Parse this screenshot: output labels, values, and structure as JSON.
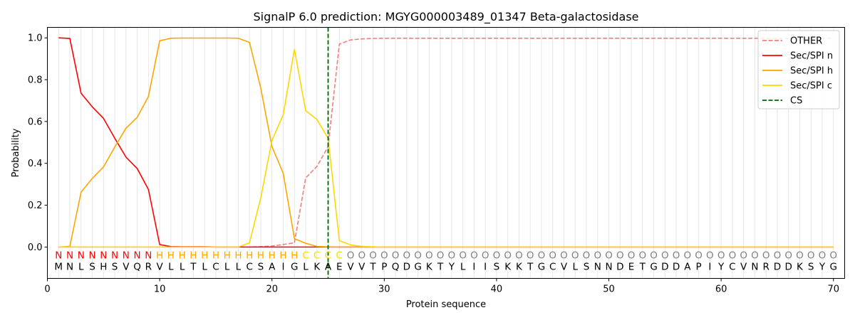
{
  "chart_data": {
    "type": "line",
    "title": "SignalP 6.0 prediction: MGYG000003489_01347 Beta-galactosidase",
    "xlabel": "Protein sequence",
    "ylabel": "Probability",
    "xlim": [
      0,
      71
    ],
    "ylim": [
      -0.15,
      1.05
    ],
    "x_ticks": [
      0,
      10,
      20,
      30,
      40,
      50,
      60,
      70
    ],
    "y_ticks": [
      0.0,
      0.2,
      0.4,
      0.6,
      0.8,
      1.0
    ],
    "x_tick_labels": [
      "0",
      "10",
      "20",
      "30",
      "40",
      "50",
      "60",
      "70"
    ],
    "y_tick_labels": [
      "0.0",
      "0.2",
      "0.4",
      "0.6",
      "0.8",
      "1.0"
    ],
    "grid": "vertical lines at each residue",
    "legend_position": "top-right",
    "sequence": "MNLSHSVQRVLLTLCLLCSAIGLKAEVVTPQDGKTYLIISKKTGCVLSNNDETGDDAPIYCVNRDDKSYG",
    "labels": "NNNNNNNNNHHHHHHHHHHHHHCCCCOOOOOOOOOOOOOOOOOOOOOOOOOOOOOOOOOOOOOOOOOOOOO",
    "label_colors": {
      "N": "#ff0000",
      "H": "#ffa500",
      "C": "#ffd700",
      "O": "#808080"
    },
    "series": [
      {
        "name": "OTHER",
        "color": "#f08080",
        "dash": "dashed",
        "values": [
          0,
          0,
          0,
          0,
          0,
          0,
          0,
          0,
          0,
          0,
          0,
          0,
          0,
          0,
          0,
          0,
          0,
          0,
          0.002,
          0.005,
          0.012,
          0.02,
          0.33,
          0.385,
          0.48,
          0.97,
          0.99,
          0.995,
          0.997,
          0.998,
          0.998,
          0.998,
          0.998,
          0.998,
          0.998,
          0.998,
          0.998,
          0.998,
          0.998,
          0.998,
          0.998,
          0.998,
          0.998,
          0.998,
          0.998,
          0.998,
          0.998,
          0.998,
          0.998,
          0.998,
          0.998,
          0.998,
          0.998,
          0.998,
          0.998,
          0.998,
          0.998,
          0.998,
          0.998,
          0.998,
          0.998,
          0.998,
          0.998,
          0.998,
          0.998,
          0.998,
          0.998,
          0.998,
          0.998,
          0.998
        ]
      },
      {
        "name": "Sec/SPI n",
        "color": "#ff0000",
        "dash": "solid",
        "values": [
          1.0,
          0.997,
          0.735,
          0.67,
          0.615,
          0.52,
          0.43,
          0.375,
          0.275,
          0.012,
          0.002,
          0.001,
          0.001,
          0.001,
          0,
          0,
          0,
          0,
          0,
          0,
          0,
          0,
          0,
          0,
          0,
          0,
          0,
          0,
          0,
          0,
          0,
          0,
          0,
          0,
          0,
          0,
          0,
          0,
          0,
          0,
          0,
          0,
          0,
          0,
          0,
          0,
          0,
          0,
          0,
          0,
          0,
          0,
          0,
          0,
          0,
          0,
          0,
          0,
          0,
          0,
          0,
          0,
          0,
          0,
          0,
          0,
          0,
          0,
          0,
          0
        ]
      },
      {
        "name": "Sec/SPI h",
        "color": "#ffa500",
        "dash": "solid",
        "values": [
          0,
          0.003,
          0.262,
          0.328,
          0.383,
          0.478,
          0.568,
          0.62,
          0.72,
          0.986,
          0.998,
          0.999,
          0.999,
          0.999,
          0.999,
          0.999,
          0.998,
          0.978,
          0.76,
          0.48,
          0.353,
          0.04,
          0.018,
          0.003,
          0.001,
          0,
          0,
          0,
          0,
          0,
          0,
          0,
          0,
          0,
          0,
          0,
          0,
          0,
          0,
          0,
          0,
          0,
          0,
          0,
          0,
          0,
          0,
          0,
          0,
          0,
          0,
          0,
          0,
          0,
          0,
          0,
          0,
          0,
          0,
          0,
          0,
          0,
          0,
          0,
          0,
          0,
          0,
          0,
          0,
          0
        ]
      },
      {
        "name": "Sec/SPI c",
        "color": "#ffd700",
        "dash": "solid",
        "values": [
          0,
          0,
          0,
          0,
          0,
          0,
          0,
          0,
          0,
          0,
          0,
          0,
          0,
          0,
          0,
          0,
          0,
          0.02,
          0.235,
          0.51,
          0.632,
          0.945,
          0.652,
          0.61,
          0.52,
          0.03,
          0.01,
          0.003,
          0.001,
          0,
          0,
          0,
          0,
          0,
          0,
          0,
          0,
          0,
          0,
          0,
          0,
          0,
          0,
          0,
          0,
          0,
          0,
          0,
          0,
          0,
          0,
          0,
          0,
          0,
          0,
          0,
          0,
          0,
          0,
          0,
          0,
          0,
          0,
          0,
          0,
          0,
          0,
          0,
          0,
          0
        ]
      }
    ],
    "cleavage_site": {
      "name": "CS",
      "x": 25,
      "color": "#006400",
      "dash": "dashed"
    }
  }
}
